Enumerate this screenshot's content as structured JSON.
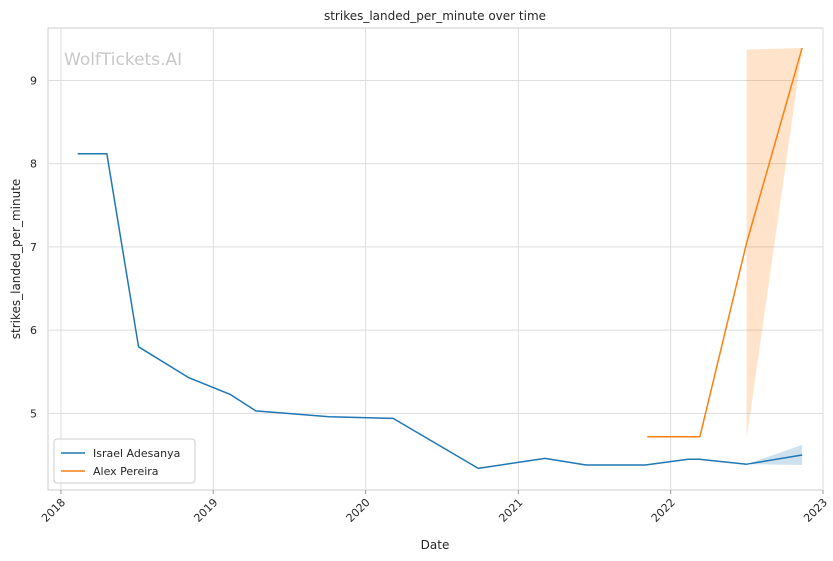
{
  "chart_data": {
    "type": "line",
    "title": "strikes_landed_per_minute over time",
    "xlabel": "Date",
    "ylabel": "strikes_landed_per_minute",
    "watermark": "WolfTickets.AI",
    "xlim": [
      "2017-12-01",
      "2023-01-01"
    ],
    "ylim": [
      4.08,
      9.63
    ],
    "x_ticks": [
      "2018",
      "2019",
      "2020",
      "2021",
      "2022",
      "2023"
    ],
    "y_ticks": [
      5,
      6,
      7,
      8,
      9
    ],
    "grid": true,
    "legend_position": "lower-left",
    "series": [
      {
        "name": "Israel Adesanya",
        "color": "#1f77b4",
        "points": [
          {
            "x": "2018-02-10",
            "y": 8.12
          },
          {
            "x": "2018-04-21",
            "y": 8.12
          },
          {
            "x": "2018-07-06",
            "y": 5.8
          },
          {
            "x": "2018-11-03",
            "y": 5.43
          },
          {
            "x": "2019-02-10",
            "y": 5.23
          },
          {
            "x": "2019-04-13",
            "y": 5.03
          },
          {
            "x": "2019-10-06",
            "y": 4.96
          },
          {
            "x": "2020-03-07",
            "y": 4.94
          },
          {
            "x": "2020-09-27",
            "y": 4.34
          },
          {
            "x": "2021-03-06",
            "y": 4.46
          },
          {
            "x": "2021-06-12",
            "y": 4.38
          },
          {
            "x": "2021-11-01",
            "y": 4.38
          },
          {
            "x": "2022-02-12",
            "y": 4.45
          },
          {
            "x": "2022-03-10",
            "y": 4.45
          },
          {
            "x": "2022-07-02",
            "y": 4.39
          },
          {
            "x": "2022-11-12",
            "y": 4.5
          }
        ],
        "band": [
          {
            "x": "2022-07-02",
            "low": 4.39,
            "high": 4.39
          },
          {
            "x": "2022-11-12",
            "low": 4.38,
            "high": 4.62
          }
        ]
      },
      {
        "name": "Alex Pereira",
        "color": "#ff7f0e",
        "points": [
          {
            "x": "2021-11-06",
            "y": 4.72
          },
          {
            "x": "2022-03-12",
            "y": 4.72
          },
          {
            "x": "2022-07-02",
            "y": 7.05
          },
          {
            "x": "2022-11-12",
            "y": 9.39
          }
        ],
        "band": [
          {
            "x": "2022-07-02",
            "low": 4.7,
            "high": 9.37
          },
          {
            "x": "2022-11-12",
            "low": 9.37,
            "high": 9.39
          }
        ]
      }
    ]
  }
}
